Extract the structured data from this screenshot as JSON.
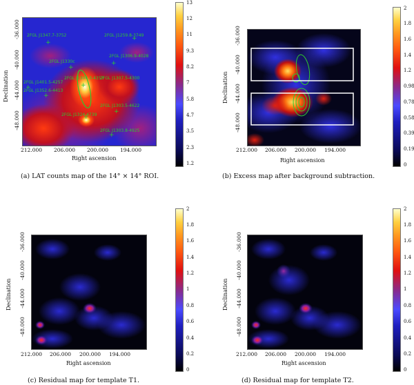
{
  "panels": [
    {
      "id": "a",
      "caption": "(a)  LAT counts map of the 14° × 14° ROI.",
      "xlabel": "Right ascension",
      "ylabel": "Declination",
      "xticks": [
        "212.000",
        "206.000",
        "200.000",
        "194.000"
      ],
      "yticks": [
        "-36.000",
        "-40.000",
        "-44.000",
        "-48.000"
      ],
      "colorbar_ticks": [
        "13",
        "12",
        "11",
        "9.3",
        "8.2",
        "7",
        "5.8",
        "4.7",
        "3.5",
        "2.3",
        "1.2"
      ],
      "sources": [
        {
          "label": "2FGL J1347.7-3752"
        },
        {
          "label": "2FGL J1259.8-3749"
        },
        {
          "label": "2FGL J1306.9-4028"
        },
        {
          "label": "2FGL J1330c"
        },
        {
          "label": "2FGL J1307.5-4300"
        },
        {
          "label": "2FGL J1304.3-4353"
        },
        {
          "label": "2FGL J1401.5-4257"
        },
        {
          "label": "2FGL J1352.6-4413"
        },
        {
          "label": "2FGL J1303.5-4622"
        },
        {
          "label": "2FGL J1324.4739"
        },
        {
          "label": "2FGL J1303.8-4925"
        }
      ]
    },
    {
      "id": "b",
      "caption": "(b)  Excess map after background subtraction.",
      "xlabel": "Right ascension",
      "ylabel": "Declination",
      "xticks": [
        "212.000",
        "206.000",
        "200.000",
        "194.000"
      ],
      "yticks": [
        "-36.000",
        "-40.000",
        "-44.000",
        "-48.000"
      ],
      "colorbar_ticks": [
        "2",
        "1.8",
        "1.6",
        "1.4",
        "1.2",
        "0.98",
        "0.78",
        "0.58",
        "0.39",
        "0.19",
        "0"
      ]
    },
    {
      "id": "c",
      "caption": "(c)  Residual map for template T1.",
      "xlabel": "Right ascension",
      "ylabel": "Declination",
      "xticks": [
        "212.000",
        "206.000",
        "200.000",
        "194.000"
      ],
      "yticks": [
        "-36.000",
        "-40.000",
        "-44.000",
        "-48.000"
      ],
      "colorbar_ticks": [
        "2",
        "1.8",
        "1.6",
        "1.4",
        "1.2",
        "1",
        "0.8",
        "0.6",
        "0.4",
        "0.2",
        "0"
      ]
    },
    {
      "id": "d",
      "caption": "(d)  Residual map for template T2.",
      "xlabel": "Right ascension",
      "ylabel": "Declination",
      "xticks": [
        "212.000",
        "206.000",
        "200.000",
        "194.000"
      ],
      "yticks": [
        "-36.000",
        "-40.000",
        "-44.000",
        "-48.000"
      ],
      "colorbar_ticks": [
        "2",
        "1.8",
        "1.6",
        "1.4",
        "1.2",
        "1",
        "0.8",
        "0.6",
        "0.4",
        "0.2",
        "0"
      ]
    }
  ],
  "colors": {
    "contour": "#2ec92e",
    "source_marker": "#2ec92e",
    "template_box": "#ffffff"
  }
}
